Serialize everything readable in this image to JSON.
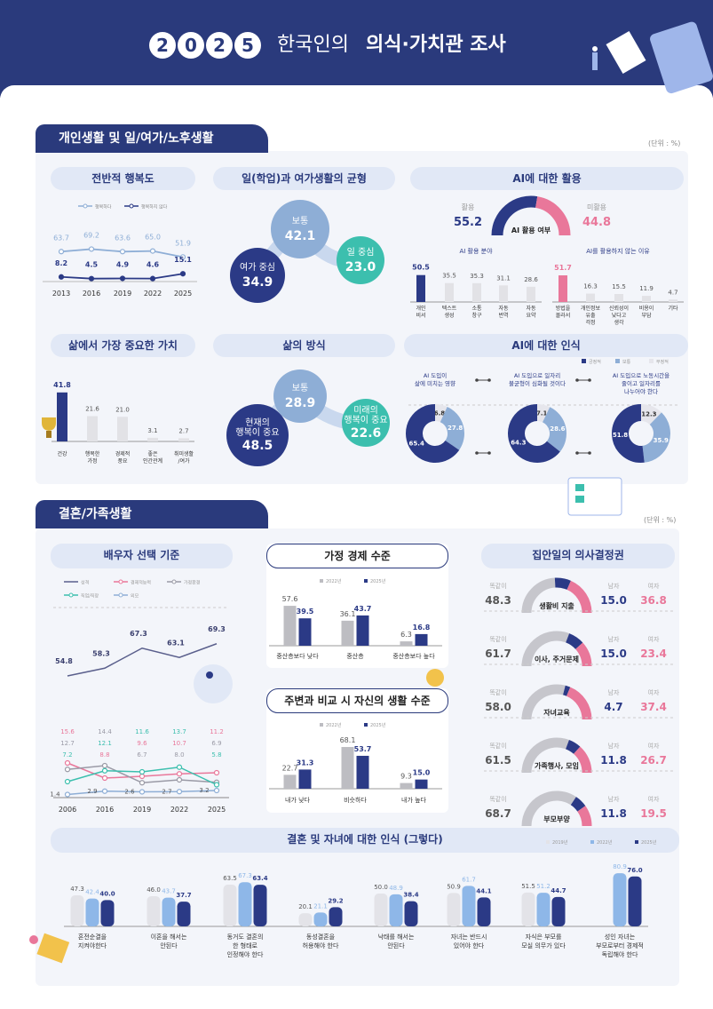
{
  "header": {
    "year_digits": [
      "2",
      "0",
      "2",
      "5"
    ],
    "title_light": "한국인의",
    "title_bold": "의식·가치관 조사"
  },
  "colors": {
    "navy": "#2b3a86",
    "light_blue": "#8eaed6",
    "pink": "#e9779a",
    "teal": "#3cbfae",
    "gray": "#c8c8cc",
    "header_bg": "#2a3a7c"
  },
  "section1": {
    "title": "개인생활 및 일/여가/노후생활",
    "unit": "(단위 : %)",
    "panels": {
      "happiness": "전반적 행복도",
      "balance": "일(학업)과 여가생활의 균형",
      "ai_use": "AI에 대한 활용",
      "value": "삶에서 가장 중요한 가치",
      "lifestyle": "삶의 방식",
      "ai_perception": "AI에 대한 인식"
    }
  },
  "section2": {
    "title": "결혼/가족생활",
    "unit": "(단위 : %)",
    "panels": {
      "spouse": "배우자 선택 기준",
      "economy": "가정 경제 수준",
      "living": "주변과 비교 시 자신의 생활 수준",
      "decision": "집안일의 의사결정권",
      "marriage": "결혼 및 자녀에 대한 인식 (그렇다)"
    }
  },
  "chart_data": [
    {
      "type": "line",
      "x": [
        "2013",
        "2016",
        "2019",
        "2022",
        "2025"
      ],
      "series": [
        {
          "name": "행복하다",
          "values": [
            63.7,
            69.2,
            63.6,
            65.0,
            51.9
          ],
          "color": "#8eaed6"
        },
        {
          "name": "행복하지 않다",
          "values": [
            8.2,
            4.5,
            4.9,
            4.6,
            15.1
          ],
          "color": "#2b3a86"
        }
      ]
    },
    {
      "type": "bubble",
      "categories": [
        {
          "label": "보통",
          "value": 42.1,
          "color": "#8eaed6"
        },
        {
          "label": "일 중심",
          "value": 23.0,
          "color": "#3cbfae"
        },
        {
          "label": "여가 중심",
          "value": 34.9,
          "color": "#2b3a86"
        }
      ]
    },
    {
      "type": "gauge",
      "title": "AI 활용 여부",
      "categories": [
        {
          "label": "활용",
          "value": 55.2,
          "color": "#2b3a86"
        },
        {
          "label": "미활용",
          "value": 44.8,
          "color": "#e9779a"
        }
      ]
    },
    {
      "type": "bar",
      "title": "AI 활용 분야",
      "categories": [
        "개인\n비서",
        "텍스트\n생성",
        "소통\n창구",
        "자동\n번역",
        "자동\n요약"
      ],
      "values": [
        50.5,
        35.5,
        35.3,
        31.1,
        28.6
      ],
      "highlight_color": "#2b3a86"
    },
    {
      "type": "bar",
      "title": "AI를 활용하지 않는 이유",
      "categories": [
        "방법을\n몰라서",
        "개인정보\n유출\n걱정",
        "신뢰성이\n낮다고\n생각",
        "비용이\n부담",
        "기타"
      ],
      "values": [
        51.7,
        16.3,
        15.5,
        11.9,
        4.7
      ],
      "highlight_color": "#e9779a"
    },
    {
      "type": "bar",
      "categories": [
        "건강",
        "행복한\n가정",
        "경제적\n풍요",
        "좋은\n인간관계",
        "취미생활\n/여가"
      ],
      "values": [
        41.8,
        21.6,
        21.0,
        3.1,
        2.7
      ],
      "highlight_color": "#2b3a86"
    },
    {
      "type": "bubble",
      "categories": [
        {
          "label": "보통",
          "value": 28.9,
          "color": "#8eaed6"
        },
        {
          "label": "미래의\n행복이 중요",
          "value": 22.6,
          "color": "#3cbfae"
        },
        {
          "label": "현재의\n행복이 중요",
          "value": 48.5,
          "color": "#2b3a86"
        }
      ]
    },
    {
      "type": "pie",
      "legend": [
        {
          "name": "긍정적",
          "color": "#2b3a86"
        },
        {
          "name": "보통",
          "color": "#8eaed6"
        },
        {
          "name": "부정적",
          "color": "#e6e6ec"
        }
      ],
      "charts": [
        {
          "title": "AI 도입이\n삶에 미치는 영향",
          "values": [
            65.4,
            27.8,
            6.8
          ]
        },
        {
          "title": "AI 도입으로 일자리\n불균형이 심화될 것이다",
          "values": [
            64.3,
            28.6,
            7.1
          ]
        },
        {
          "title": "AI 도입으로 노동시간을\n줄이고 일자리를\n나누어야 한다",
          "values": [
            51.8,
            35.9,
            12.3
          ]
        }
      ]
    },
    {
      "type": "line",
      "x": [
        "2006",
        "2016",
        "2019",
        "2022",
        "2025"
      ],
      "series": [
        {
          "name": "성격",
          "values": [
            54.8,
            58.3,
            67.3,
            63.1,
            69.3
          ],
          "color": "#5a5f8c"
        },
        {
          "name": "경제적능력",
          "values": [
            15.6,
            8.8,
            9.6,
            10.7,
            11.2
          ],
          "color": "#e9779a"
        },
        {
          "name": "가정환경",
          "values": [
            12.7,
            14.4,
            6.7,
            8.0,
            6.9
          ],
          "color": "#9a9aa6"
        },
        {
          "name": "직업/직장",
          "values": [
            7.2,
            12.1,
            11.6,
            13.7,
            5.8
          ],
          "color": "#3cbfae"
        },
        {
          "name": "외모",
          "values": [
            1.4,
            2.9,
            2.6,
            2.7,
            3.2
          ],
          "color": "#8eaed6"
        }
      ]
    },
    {
      "type": "bar",
      "categories": [
        "중산층보다 낮다",
        "중산층",
        "중산층보다 높다"
      ],
      "series": [
        {
          "name": "2022년",
          "values": [
            57.6,
            36.1,
            6.3
          ],
          "color": "#bdbdc2"
        },
        {
          "name": "2025년",
          "values": [
            39.5,
            43.7,
            16.8
          ],
          "color": "#2b3a86"
        }
      ]
    },
    {
      "type": "bar",
      "categories": [
        "내가 낮다",
        "비슷하다",
        "내가 높다"
      ],
      "series": [
        {
          "name": "2022년",
          "values": [
            22.7,
            68.1,
            9.3
          ],
          "color": "#bdbdc2"
        },
        {
          "name": "2025년",
          "values": [
            31.3,
            53.7,
            15.0
          ],
          "color": "#2b3a86"
        }
      ]
    },
    {
      "type": "gauge",
      "labels": {
        "equal": "똑같이",
        "male": "남자",
        "female": "여자"
      },
      "items": [
        {
          "label": "생활비 지출",
          "equal": 48.3,
          "male": 15.0,
          "female": 36.8
        },
        {
          "label": "이사, 주거문제",
          "equal": 61.7,
          "male": 15.0,
          "female": 23.4
        },
        {
          "label": "자녀교육",
          "equal": 58.0,
          "male": 4.7,
          "female": 37.4
        },
        {
          "label": "가족행사, 모임",
          "equal": 61.5,
          "male": 11.8,
          "female": 26.7
        },
        {
          "label": "부모부양",
          "equal": 68.7,
          "male": 11.8,
          "female": 19.5
        }
      ]
    },
    {
      "type": "bar",
      "categories": [
        "혼전순결을\n지켜야한다",
        "이혼을 해서는\n안된다",
        "동거도 결혼의\n한 형태로\n인정해야 한다",
        "동성결혼을\n허용해야 한다",
        "낙태를 해서는\n안된다",
        "자녀는 반드시\n있어야 한다",
        "자식은 부모를\n모실 의무가 있다",
        "성인 자녀는\n부모로부터 경제적\n독립해야 한다"
      ],
      "series": [
        {
          "name": "2019년",
          "values": [
            47.3,
            46.0,
            63.5,
            20.1,
            50.0,
            50.9,
            51.5,
            null
          ],
          "color": "#e3e3e8"
        },
        {
          "name": "2022년",
          "values": [
            42.4,
            43.7,
            67.3,
            21.1,
            48.9,
            61.7,
            51.2,
            80.9
          ],
          "color": "#8eb7e8"
        },
        {
          "name": "2025년",
          "values": [
            40.0,
            37.7,
            63.4,
            29.2,
            38.4,
            44.1,
            44.7,
            76.0
          ],
          "color": "#2b3a86"
        }
      ]
    }
  ]
}
